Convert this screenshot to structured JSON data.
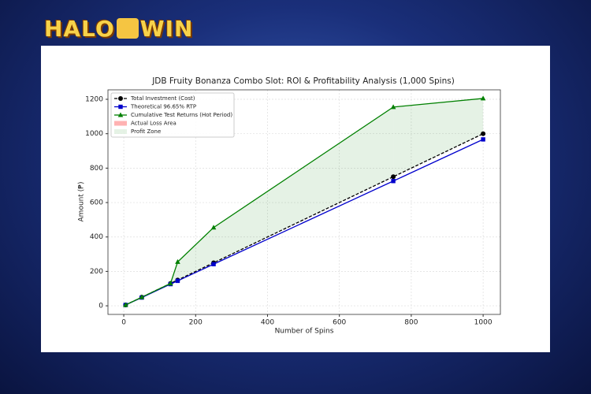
{
  "logo": {
    "left": "HALO",
    "right": "WIN"
  },
  "chart_data": {
    "type": "line",
    "title": "JDB Fruity Bonanza Combo Slot: ROI & Profitability Analysis (1,000 Spins)",
    "x_label": "Number of Spins",
    "y_label": "Amount (₱)",
    "x": [
      5,
      50,
      130,
      150,
      250,
      750,
      1000
    ],
    "series": [
      {
        "name": "Total Investment (Cost)",
        "color": "#000000",
        "marker": "circle",
        "dash": true,
        "values": [
          5,
          50,
          130,
          150,
          250,
          750,
          1000
        ]
      },
      {
        "name": "Theoretical 96.65% RTP",
        "color": "#0000cc",
        "marker": "square",
        "dash": false,
        "values": [
          5,
          48,
          126,
          145,
          242,
          725,
          967
        ]
      },
      {
        "name": "Cumulative Test Returns (Hot Period)",
        "color": "#008000",
        "marker": "triangle",
        "dash": false,
        "values": [
          5,
          50,
          130,
          255,
          455,
          1155,
          1205
        ]
      }
    ],
    "fills": [
      {
        "name": "Actual Loss Area",
        "color": "#ff0000"
      },
      {
        "name": "Profit Zone",
        "color": "#008000"
      }
    ],
    "xlim": [
      -44,
      1048
    ],
    "ylim": [
      -50,
      1255
    ],
    "xticks": [
      0,
      200,
      400,
      600,
      800,
      1000
    ],
    "yticks": [
      0,
      200,
      400,
      600,
      800,
      1000,
      1200
    ],
    "grid": true,
    "legend": "upper left"
  }
}
